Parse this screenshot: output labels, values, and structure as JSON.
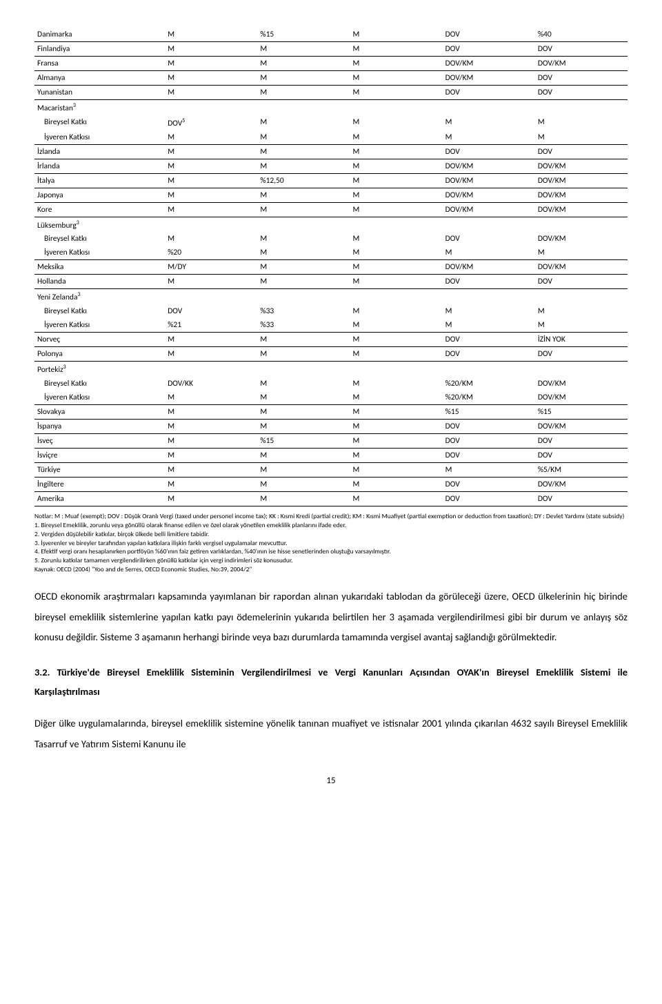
{
  "table": {
    "rows": [
      {
        "country": "Danimarka",
        "c1": "M",
        "c2": "%15",
        "c3": "M",
        "c4": "DOV",
        "c5": "%40"
      },
      {
        "country": "Finlandiya",
        "c1": "M",
        "c2": "M",
        "c3": "M",
        "c4": "DOV",
        "c5": "DOV"
      },
      {
        "country": "Fransa",
        "c1": "M",
        "c2": "M",
        "c3": "M",
        "c4": "DOV/KM",
        "c5": "DOV/KM"
      },
      {
        "country": "Almanya",
        "c1": "M",
        "c2": "M",
        "c3": "M",
        "c4": "DOV/KM",
        "c5": "DOV"
      },
      {
        "country": "Yunanistan",
        "c1": "M",
        "c2": "M",
        "c3": "M",
        "c4": "DOV",
        "c5": "DOV"
      },
      {
        "country": "Macaristan",
        "sup": "3",
        "sub": [
          {
            "label": "Bireysel Katkı",
            "c1": "DOV",
            "sup1": "5",
            "c2": "M",
            "c3": "M",
            "c4": "M",
            "c5": "M"
          },
          {
            "label": "İşveren Katkısı",
            "c1": "M",
            "c2": "M",
            "c3": "M",
            "c4": "M",
            "c5": "M"
          }
        ]
      },
      {
        "country": "İzlanda",
        "c1": "M",
        "c2": "M",
        "c3": "M",
        "c4": "DOV",
        "c5": "DOV"
      },
      {
        "country": "İrlanda",
        "c1": "M",
        "c2": "M",
        "c3": "M",
        "c4": "DOV/KM",
        "c5": "DOV/KM"
      },
      {
        "country": "İtalya",
        "c1": "M",
        "c2": "%12,50",
        "c3": "M",
        "c4": "DOV/KM",
        "c5": "DOV/KM"
      },
      {
        "country": "Japonya",
        "c1": "M",
        "c2": "M",
        "c3": "M",
        "c4": "DOV/KM",
        "c5": "DOV/KM"
      },
      {
        "country": "Kore",
        "c1": "M",
        "c2": "M",
        "c3": "M",
        "c4": "DOV/KM",
        "c5": "DOV/KM"
      },
      {
        "country": "Lüksemburg",
        "sup": "3",
        "sub": [
          {
            "label": "Bireysel Katkı",
            "c1": "M",
            "c2": "M",
            "c3": "M",
            "c4": "DOV",
            "c5": "DOV/KM"
          },
          {
            "label": "İşveren Katkısı",
            "c1": "%20",
            "c2": "M",
            "c3": "M",
            "c4": "M",
            "c5": "M"
          }
        ]
      },
      {
        "country": "Meksika",
        "c1": "M/DY",
        "c2": "M",
        "c3": "M",
        "c4": "DOV/KM",
        "c5": "DOV/KM"
      },
      {
        "country": "Hollanda",
        "c1": "M",
        "c2": "M",
        "c3": "M",
        "c4": "DOV",
        "c5": "DOV"
      },
      {
        "country": "Yeni Zelanda",
        "sup": "3",
        "sub": [
          {
            "label": "Bireysel Katkı",
            "c1": "DOV",
            "c2": "%33",
            "c3": "M",
            "c4": "M",
            "c5": "M"
          },
          {
            "label": "İşveren Katkısı",
            "c1": "%21",
            "c2": "%33",
            "c3": "M",
            "c4": "M",
            "c5": "M"
          }
        ]
      },
      {
        "country": "Norveç",
        "c1": "M",
        "c2": "M",
        "c3": "M",
        "c4": "DOV",
        "c5": "İZİN YOK"
      },
      {
        "country": "Polonya",
        "c1": "M",
        "c2": "M",
        "c3": "M",
        "c4": "DOV",
        "c5": "DOV"
      },
      {
        "country": "Portekiz",
        "sup": "3",
        "sub": [
          {
            "label": "Bireysel Katkı",
            "c1": "DOV/KK",
            "c2": "M",
            "c3": "M",
            "c4": "%20/KM",
            "c5": "DOV/KM"
          },
          {
            "label": "İşveren Katkısı",
            "c1": "M",
            "c2": "M",
            "c3": "M",
            "c4": "%20/KM",
            "c5": "DOV/KM"
          }
        ]
      },
      {
        "country": "Slovakya",
        "c1": "M",
        "c2": "M",
        "c3": "M",
        "c4": "%15",
        "c5": "%15"
      },
      {
        "country": "İspanya",
        "c1": "M",
        "c2": "M",
        "c3": "M",
        "c4": "DOV",
        "c5": "DOV/KM"
      },
      {
        "country": "İsveç",
        "c1": "M",
        "c2": "%15",
        "c3": "M",
        "c4": "DOV",
        "c5": "DOV"
      },
      {
        "country": "İsviçre",
        "c1": "M",
        "c2": "M",
        "c3": "M",
        "c4": "DOV",
        "c5": "DOV"
      },
      {
        "country": "Türkiye",
        "c1": "M",
        "c2": "M",
        "c3": "M",
        "c4": "M",
        "c5": "%5/KM"
      },
      {
        "country": "İngiltere",
        "c1": "M",
        "c2": "M",
        "c3": "M",
        "c4": "DOV",
        "c5": "DOV/KM"
      },
      {
        "country": "Amerika",
        "c1": "M",
        "c2": "M",
        "c3": "M",
        "c4": "DOV",
        "c5": "DOV"
      }
    ]
  },
  "notes": {
    "intro": "Notlar: M : Muaf (exempt); DOV : Düşük Oranlı Vergi (taxed  under personel income tax); KK : Kısmi Kredi (partial credit); KM : Kısmi Muafiyet (partial exemption or deduction from taxation); DY : Devlet Yardımı (state subsidy)",
    "n1": "1. Bireysel Emeklilik, zorunlu veya gönüllü olarak finanse edilen ve özel olarak yönetilen emeklilik planlarını ifade eder.",
    "n2": "2. Vergiden düşülebilir katkılar, birçok ülkede belli limitlere tabidir.",
    "n3": "3. İşverenler ve bireyler tarafından yapılan katkılara ilişkin farklı vergisel uygulamalar mevcuttur.",
    "n4": "4. Efektif vergi oranı hesaplanırken portföyün %60'ının faiz getiren varlıklardan, %40'ının ise hisse senetlerinden oluştuğu varsayılmıştır.",
    "n5": "5. Zorunlu katkılar tamamen vergilendirilirken gönüllü katkılar için vergi indirimleri söz konusudur.",
    "source": "Kaynak: OECD (2004) \"Yoo and de Serres, OECD Economic Studies, No:39, 2004/2\""
  },
  "para1": "OECD ekonomik araştırmaları kapsamında yayımlanan bir rapordan alınan yukarıdaki tablodan da görüleceği üzere, OECD ülkelerinin hiç birinde bireysel emeklilik sistemlerine yapılan katkı payı ödemelerinin yukarıda belirtilen her 3 aşamada vergilendirilmesi gibi bir durum ve anlayış söz konusu değildir. Sisteme 3 aşamanın herhangi birinde veya bazı durumlarda tamamında vergisel avantaj sağlandığı görülmektedir.",
  "heading": "3.2. Türkiye'de Bireysel Emeklilik Sisteminin Vergilendirilmesi ve Vergi Kanunları Açısından OYAK'ın Bireysel Emeklilik Sistemi ile Karşılaştırılması",
  "para2": "Diğer ülke uygulamalarında, bireysel emeklilik sistemine yönelik tanınan muafiyet ve istisnalar 2001 yılında çıkarılan 4632 sayılı Bireysel Emeklilik Tasarruf ve Yatırım Sistemi Kanunu ile",
  "pagenum": "15"
}
